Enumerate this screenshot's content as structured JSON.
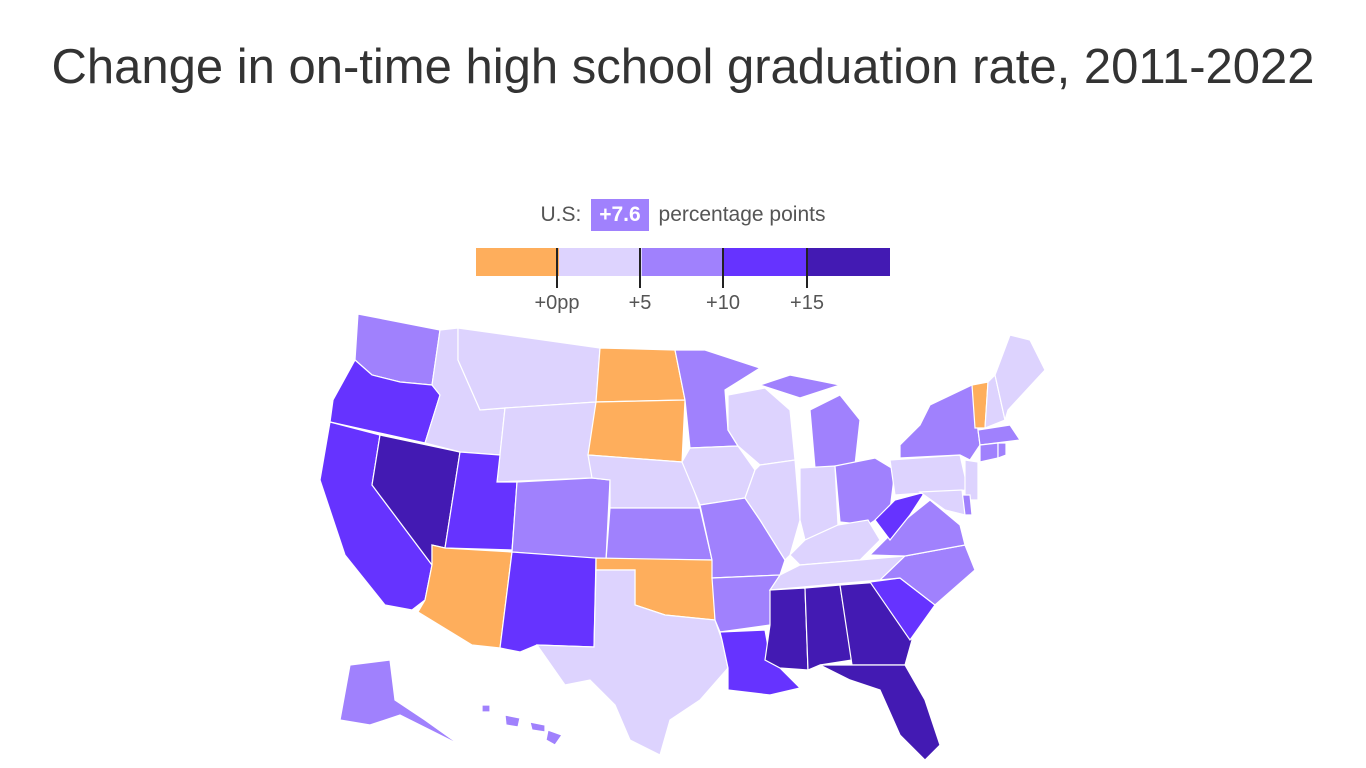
{
  "title": "Change in on-time high school graduation rate, 2011-2022",
  "us_summary": {
    "prefix": "U.S:",
    "value": "+7.6",
    "suffix": "percentage points"
  },
  "legend": {
    "colors": [
      "#feae5c",
      "#ddd3fe",
      "#a081fd",
      "#6633ff",
      "#431ab3"
    ],
    "ticks": [
      "+0pp",
      "+5",
      "+10",
      "+15"
    ]
  },
  "state_bins": {
    "WA": 2,
    "OR": 3,
    "CA": 3,
    "NV": 4,
    "ID": 1,
    "MT": 1,
    "WY": 1,
    "UT": 3,
    "AZ": 0,
    "CO": 2,
    "NM": 3,
    "ND": 0,
    "SD": 0,
    "NE": 1,
    "KS": 2,
    "OK": 0,
    "TX": 1,
    "MN": 2,
    "IA": 1,
    "MO": 2,
    "AR": 2,
    "LA": 3,
    "WI": 1,
    "IL": 1,
    "MI": 2,
    "MIU": 2,
    "IN": 1,
    "OH": 2,
    "KY": 1,
    "TN": 1,
    "MS": 4,
    "AL": 4,
    "GA": 4,
    "FL": 4,
    "SC": 3,
    "NC": 2,
    "VA": 2,
    "WV": 3,
    "PA": 1,
    "NY": 2,
    "VT": 0,
    "NH": 1,
    "ME": 1,
    "MA": 2,
    "CT": 2,
    "RI": 2,
    "NJ": 1,
    "DE": 2,
    "MD": 1,
    "AK": 2,
    "HI": 2
  }
}
